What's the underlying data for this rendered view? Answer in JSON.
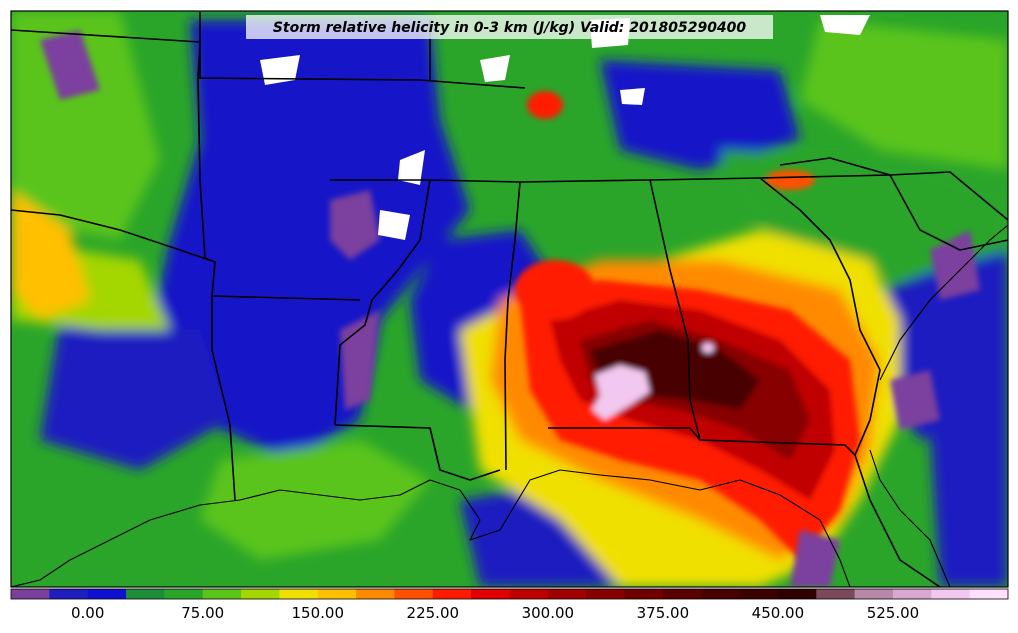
{
  "title": "Storm relative helicity in 0-3 km (J/kg) Valid: 201805290400",
  "colorbar": {
    "colors": [
      "#7b3f9e",
      "#1f1fbf",
      "#1010d0",
      "#1f8c3a",
      "#2aa52a",
      "#5ac41a",
      "#a4d600",
      "#f0e000",
      "#ffc000",
      "#ff8a00",
      "#ff5000",
      "#ff1a00",
      "#e00000",
      "#c00000",
      "#a00000",
      "#880000",
      "#700000",
      "#5a0000",
      "#4a0000",
      "#3d0000",
      "#2e0000",
      "#7a4a5a",
      "#b888a8",
      "#d8a8d0",
      "#f2c8f0",
      "#ffe0ff"
    ],
    "tick_labels": [
      "0.00",
      "75.00",
      "150.00",
      "225.00",
      "300.00",
      "375.00",
      "450.00",
      "525.00"
    ]
  },
  "chart_data": {
    "type": "heatmap",
    "title": "Storm relative helicity in 0-3 km (J/kg) Valid: 201805290400",
    "colorbar_ticks": [
      0,
      75,
      150,
      225,
      300,
      375,
      450,
      525
    ]
  }
}
